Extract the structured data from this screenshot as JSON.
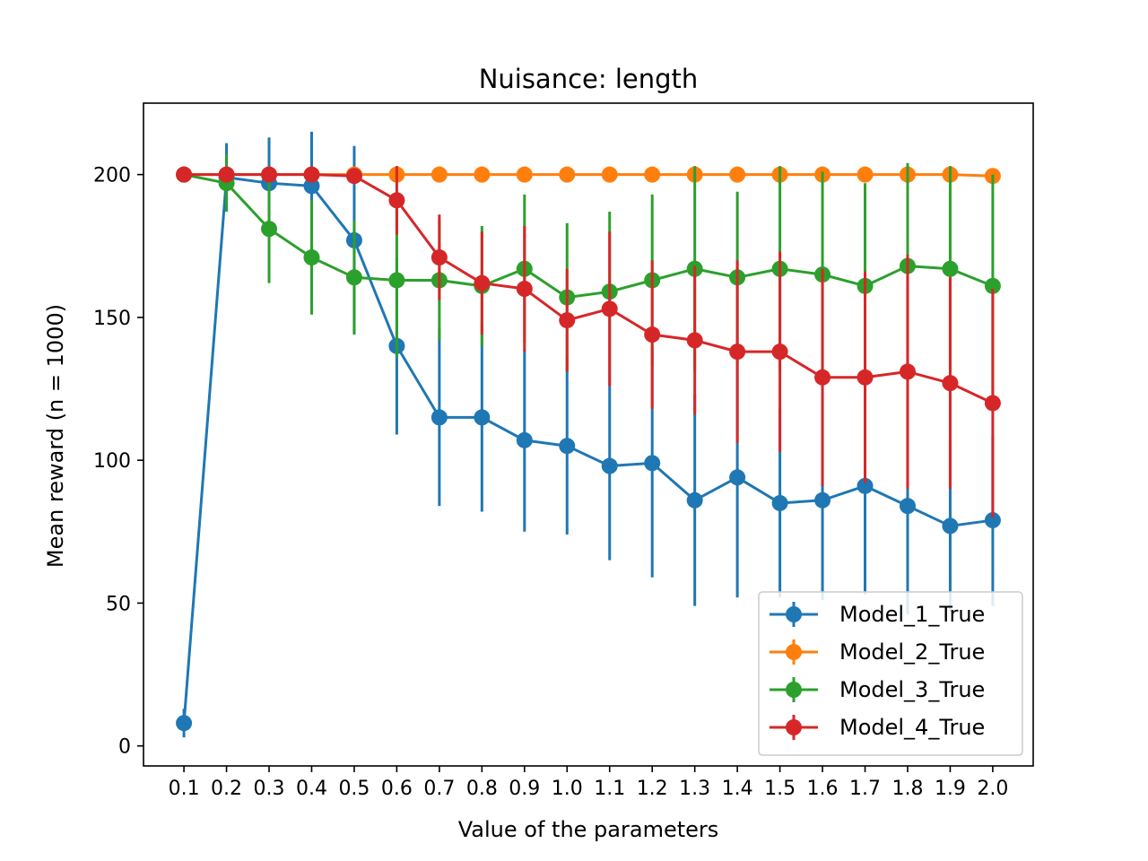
{
  "chart_data": {
    "type": "line",
    "title": "Nuisance: length",
    "xlabel": "Value of the parameters",
    "ylabel": "Mean reward (n = 1000)",
    "x_tick_labels": [
      "0.1",
      "0.2",
      "0.3",
      "0.4",
      "0.5",
      "0.6",
      "0.7",
      "0.8",
      "0.9",
      "1.0",
      "1.1",
      "1.2",
      "1.3",
      "1.4",
      "1.5",
      "1.6",
      "1.7",
      "1.8",
      "1.9",
      "2.0"
    ],
    "x": [
      0.1,
      0.2,
      0.3,
      0.4,
      0.5,
      0.6,
      0.7,
      0.8,
      0.9,
      1.0,
      1.1,
      1.2,
      1.3,
      1.4,
      1.5,
      1.6,
      1.7,
      1.8,
      1.9,
      2.0
    ],
    "y_ticks": [
      0,
      50,
      100,
      150,
      200
    ],
    "ylim": [
      -7,
      225
    ],
    "xlim": [
      0.005,
      2.095
    ],
    "grid": false,
    "legend_position": "lower-right",
    "series": [
      {
        "name": "Model_1_True",
        "color": "#1f77b4",
        "values": [
          8,
          199,
          197,
          196,
          177,
          140,
          115,
          115,
          107,
          105,
          98,
          99,
          86,
          94,
          85,
          86,
          91,
          84,
          77,
          79
        ],
        "errors": [
          5,
          12,
          16,
          19,
          33,
          31,
          31,
          33,
          32,
          31,
          33,
          40,
          37,
          42,
          33,
          35,
          38,
          38,
          30,
          30
        ]
      },
      {
        "name": "Model_2_True",
        "color": "#ff7f0e",
        "values": [
          200,
          200,
          200,
          200,
          200,
          200,
          200,
          200,
          200,
          200,
          200,
          200,
          200,
          200,
          200,
          200,
          200,
          200,
          200,
          199.5
        ],
        "errors": [
          0,
          0,
          0,
          0,
          0,
          0,
          0,
          0,
          0,
          0,
          0,
          0,
          0,
          0,
          0,
          0,
          0,
          0,
          0,
          0.5
        ]
      },
      {
        "name": "Model_3_True",
        "color": "#2ca02c",
        "values": [
          200,
          197,
          181,
          171,
          164,
          163,
          163,
          161,
          167,
          157,
          159,
          163,
          167,
          164,
          167,
          165,
          161,
          168,
          167,
          161
        ],
        "errors": [
          0,
          10,
          19,
          20,
          20,
          27,
          21,
          21,
          26,
          26,
          28,
          30,
          36,
          30,
          36,
          36,
          36,
          36,
          36,
          39
        ]
      },
      {
        "name": "Model_4_True",
        "color": "#d62728",
        "values": [
          200,
          200,
          200,
          200,
          199.5,
          191,
          171,
          162,
          160,
          149,
          153,
          144,
          142,
          138,
          138,
          129,
          129,
          131,
          127,
          120
        ],
        "errors": [
          0,
          0,
          0,
          0,
          0.5,
          12,
          15,
          18,
          22,
          18,
          27,
          26,
          26,
          32,
          35,
          38,
          37,
          41,
          37,
          40
        ]
      }
    ]
  }
}
